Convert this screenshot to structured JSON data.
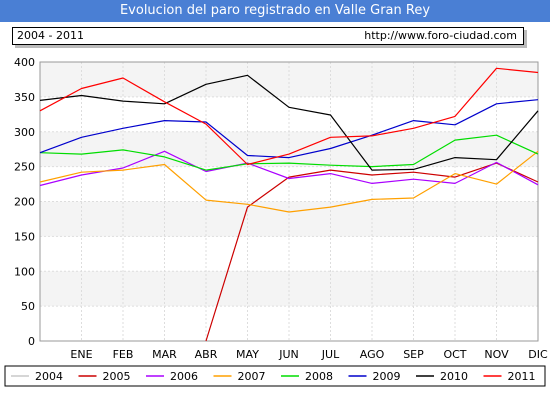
{
  "header": {
    "title": "Evolucion del paro registrado en Valle Gran Rey",
    "period": "2004 - 2011",
    "url": "http://www.foro-ciudad.com"
  },
  "chart_data": {
    "type": "line",
    "title": "Evolucion del paro registrado en Valle Gran Rey",
    "categories": [
      "",
      "ENE",
      "FEB",
      "MAR",
      "ABR",
      "MAY",
      "JUN",
      "JUL",
      "AGO",
      "SEP",
      "OCT",
      "NOV",
      "DIC"
    ],
    "ylim": [
      0,
      400
    ],
    "yticks": [
      0,
      50,
      100,
      150,
      200,
      250,
      300,
      350,
      400
    ],
    "grid": true,
    "legend_position": "bottom",
    "series": [
      {
        "name": "2004",
        "color": "#c8c8c8",
        "values": [
          null,
          null,
          null,
          null,
          null,
          null,
          null,
          null,
          null,
          null,
          null,
          null,
          null
        ]
      },
      {
        "name": "2005",
        "color": "#cc0000",
        "values": [
          null,
          null,
          null,
          null,
          0,
          192,
          235,
          245,
          238,
          242,
          235,
          255,
          228
        ]
      },
      {
        "name": "2006",
        "color": "#aa00ff",
        "values": [
          223,
          238,
          248,
          272,
          243,
          255,
          233,
          240,
          226,
          232,
          226,
          256,
          224
        ]
      },
      {
        "name": "2007",
        "color": "#ffa000",
        "values": [
          228,
          242,
          245,
          253,
          202,
          196,
          185,
          192,
          203,
          205,
          240,
          225,
          272
        ]
      },
      {
        "name": "2008",
        "color": "#00dd00",
        "values": [
          270,
          268,
          274,
          264,
          245,
          254,
          255,
          252,
          250,
          253,
          288,
          295,
          268
        ]
      },
      {
        "name": "2009",
        "color": "#0000cc",
        "values": [
          270,
          292,
          305,
          316,
          314,
          266,
          263,
          276,
          295,
          316,
          310,
          340,
          346
        ]
      },
      {
        "name": "2010",
        "color": "#000000",
        "values": [
          345,
          352,
          344,
          340,
          368,
          381,
          335,
          324,
          245,
          246,
          263,
          260,
          330
        ]
      },
      {
        "name": "2011",
        "color": "#ff0000",
        "values": [
          330,
          362,
          377,
          343,
          311,
          253,
          268,
          292,
          294,
          305,
          322,
          391,
          385
        ]
      }
    ]
  }
}
